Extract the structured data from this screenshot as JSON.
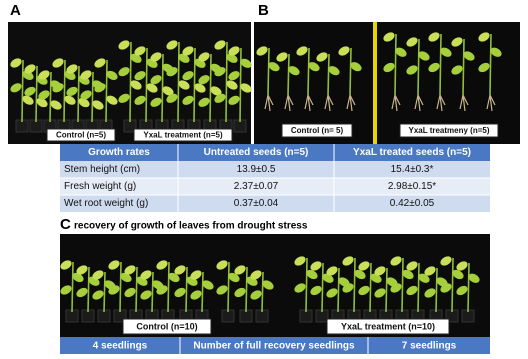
{
  "panel_a": {
    "letter": "A",
    "labels": [
      "Control (n=5)",
      "YxaL treatment (n=5)"
    ]
  },
  "panel_b": {
    "letter": "B",
    "labels": [
      "Control (n= 5)",
      "YxaL treatmeny (n=5)"
    ]
  },
  "table": {
    "header": [
      "Growth rates",
      "Untreated seeds (n=5)",
      "YxaL treated seeds (n=5)"
    ],
    "rows": [
      [
        "Stem height (cm)",
        "13.9±0.5",
        "15.4±0.3*"
      ],
      [
        "Fresh weight (g)",
        "2.37±0.07",
        "2.98±0.15*"
      ],
      [
        "Wet root weight (g)",
        "0.37±0.04",
        "0.42±0.05"
      ]
    ]
  },
  "panel_c": {
    "letter": "C",
    "title": "recovery of growth of leaves from drought stress",
    "labels": [
      "Control (n=10)",
      "YxaL treatment (n=10)"
    ],
    "footer": [
      "4 seedlings",
      "Number of full recovery seedlings",
      "7 seedlings"
    ]
  }
}
